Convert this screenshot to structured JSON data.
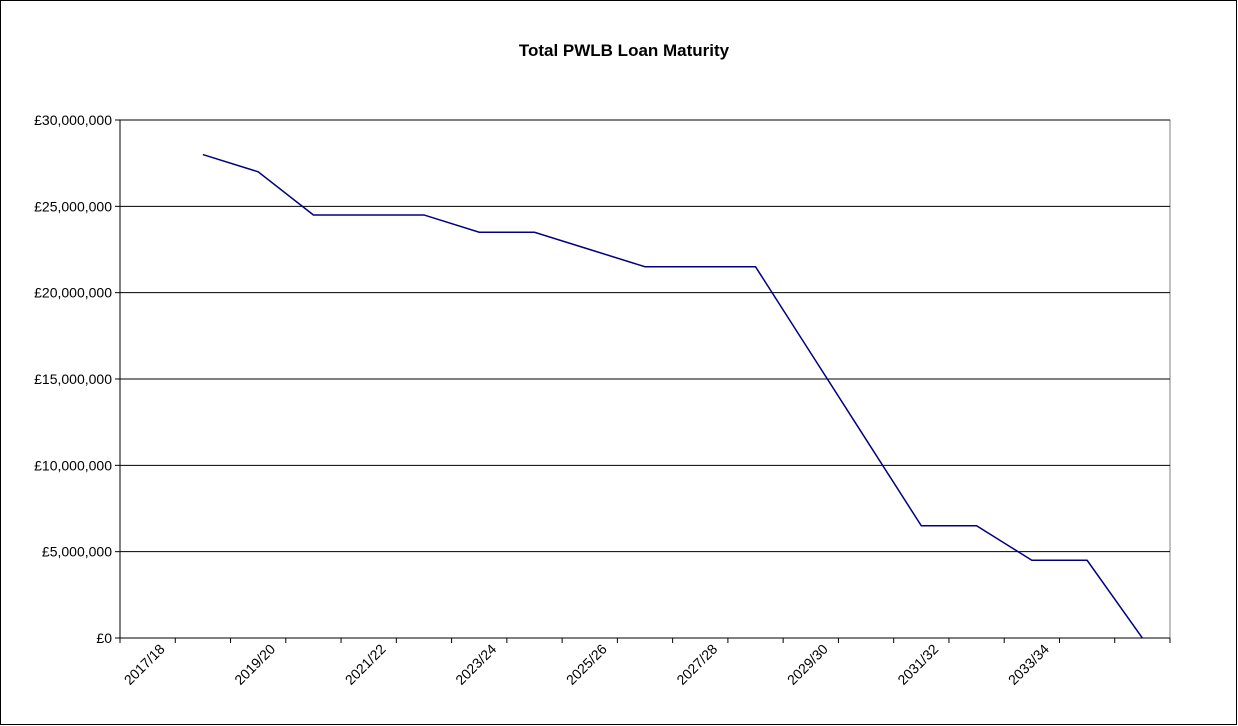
{
  "chart_data": {
    "type": "line",
    "title": "Total PWLB Loan Maturity",
    "categories": [
      "2017/18",
      null,
      "2019/20",
      null,
      "2021/22",
      null,
      "2023/24",
      null,
      "2025/26",
      null,
      "2027/28",
      null,
      "2029/30",
      null,
      "2031/32",
      null,
      "2033/34",
      null,
      null
    ],
    "series": [
      {
        "name": "Total PWLB Loan Maturity",
        "color": "#000080",
        "values": [
          null,
          28000000,
          27000000,
          24500000,
          24500000,
          24500000,
          23500000,
          23500000,
          22500000,
          21500000,
          21500000,
          21500000,
          16500000,
          11500000,
          6500000,
          6500000,
          4500000,
          4500000,
          0
        ]
      }
    ],
    "ylim": [
      0,
      30000000
    ],
    "yticks": [
      {
        "value": 0,
        "label": "£0"
      },
      {
        "value": 5000000,
        "label": "£5,000,000"
      },
      {
        "value": 10000000,
        "label": "£10,000,000"
      },
      {
        "value": 15000000,
        "label": "£15,000,000"
      },
      {
        "value": 20000000,
        "label": "£20,000,000"
      },
      {
        "value": 25000000,
        "label": "£25,000,000"
      },
      {
        "value": 30000000,
        "label": "£30,000,000"
      }
    ],
    "grid": true
  }
}
